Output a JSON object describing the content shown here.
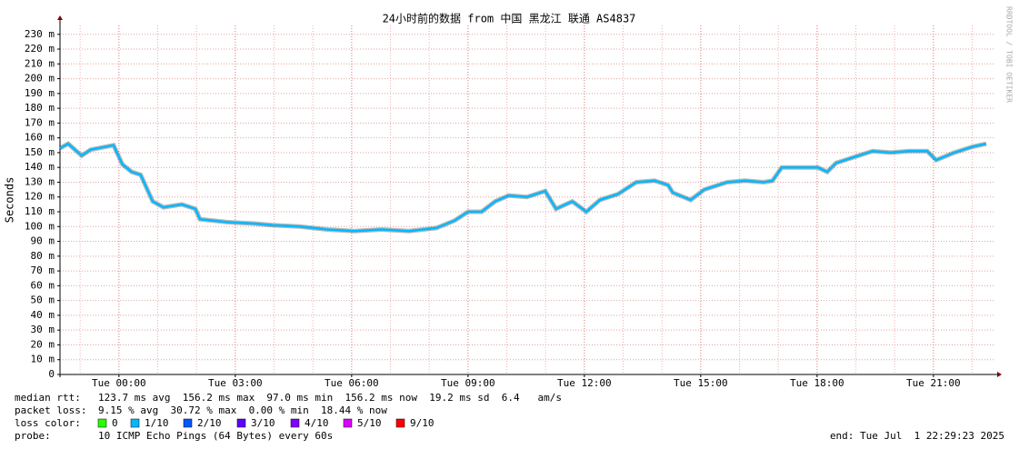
{
  "chart_data": {
    "type": "line",
    "title": "24小时前的数据 from 中国 黑龙江 联通 AS4837",
    "ylabel": "Seconds",
    "watermark": "RRDTOOL / TOBI OETIKER",
    "x": [
      -1.52,
      -1.31,
      -0.96,
      -0.73,
      -0.14,
      0.09,
      0.33,
      0.56,
      0.87,
      1.15,
      1.62,
      1.97,
      2.09,
      2.79,
      3.49,
      3.96,
      4.66,
      5.37,
      6.07,
      6.77,
      7.48,
      8.18,
      8.65,
      9.0,
      9.35,
      9.7,
      10.05,
      10.52,
      10.99,
      11.27,
      11.69,
      12.05,
      12.4,
      12.87,
      13.34,
      13.81,
      14.16,
      14.28,
      14.74,
      15.09,
      15.68,
      16.15,
      16.62,
      16.85,
      17.09,
      17.55,
      18.02,
      18.26,
      18.49,
      18.96,
      19.43,
      19.9,
      20.37,
      20.84,
      21.07,
      21.54,
      22.01,
      22.36
    ],
    "series": [
      {
        "name": "median rtt",
        "color": "#00b8ff",
        "values": [
          153,
          156,
          148,
          152,
          155,
          142,
          137,
          135,
          117,
          113,
          115,
          112,
          105,
          103,
          102,
          101,
          100,
          98,
          97,
          98,
          97,
          99,
          104,
          110,
          110,
          117,
          121,
          120,
          124,
          112,
          117,
          110,
          118,
          122,
          130,
          131,
          128,
          123,
          118,
          125,
          130,
          131,
          130,
          131,
          140,
          140,
          140,
          137,
          143,
          147,
          151,
          150,
          151,
          151,
          145,
          150,
          154,
          156
        ]
      }
    ],
    "xlim": [
      -1.52,
      22.55
    ],
    "xticks": [
      {
        "value": 0,
        "label": "Tue 00:00"
      },
      {
        "value": 3,
        "label": "Tue 03:00"
      },
      {
        "value": 6,
        "label": "Tue 06:00"
      },
      {
        "value": 9,
        "label": "Tue 09:00"
      },
      {
        "value": 12,
        "label": "Tue 12:00"
      },
      {
        "value": 15,
        "label": "Tue 15:00"
      },
      {
        "value": 18,
        "label": "Tue 18:00"
      },
      {
        "value": 21,
        "label": "Tue 21:00"
      }
    ],
    "ylim": [
      0,
      236
    ],
    "yticks": [
      0,
      {
        "value": 10,
        "label": "10 m"
      },
      {
        "value": 20,
        "label": "20 m"
      },
      {
        "value": 30,
        "label": "30 m"
      },
      {
        "value": 40,
        "label": "40 m"
      },
      {
        "value": 50,
        "label": "50 m"
      },
      {
        "value": 60,
        "label": "60 m"
      },
      {
        "value": 70,
        "label": "70 m"
      },
      {
        "value": 80,
        "label": "80 m"
      },
      {
        "value": 90,
        "label": "90 m"
      },
      {
        "value": 100,
        "label": "100 m"
      },
      {
        "value": 110,
        "label": "110 m"
      },
      {
        "value": 120,
        "label": "120 m"
      },
      {
        "value": 130,
        "label": "130 m"
      },
      {
        "value": 140,
        "label": "140 m"
      },
      {
        "value": 150,
        "label": "150 m"
      },
      {
        "value": 160,
        "label": "160 m"
      },
      {
        "value": 170,
        "label": "170 m"
      },
      {
        "value": 180,
        "label": "180 m"
      },
      {
        "value": 190,
        "label": "190 m"
      },
      {
        "value": 200,
        "label": "200 m"
      },
      {
        "value": 210,
        "label": "210 m"
      },
      {
        "value": 220,
        "label": "220 m"
      },
      {
        "value": 230,
        "label": "230 m"
      }
    ],
    "grid": true,
    "footer": {
      "median_rtt": {
        "label": "median rtt:",
        "text": "123.7 ms avg  156.2 ms max  97.0 ms min  156.2 ms now  19.2 ms sd  6.4   am/s"
      },
      "packet_loss": {
        "label": "packet loss:",
        "text": "9.15 % avg  30.72 % max  0.00 % min  18.44 % now"
      },
      "loss_color": {
        "label": "loss color:",
        "items": [
          {
            "name": "0",
            "color": "#26ff00"
          },
          {
            "name": "1/10",
            "color": "#00b8ff"
          },
          {
            "name": "2/10",
            "color": "#0059ff"
          },
          {
            "name": "3/10",
            "color": "#5e00ff"
          },
          {
            "name": "4/10",
            "color": "#7e00ff"
          },
          {
            "name": "5/10",
            "color": "#dd00ff"
          },
          {
            "name": "9/10",
            "color": "#ff0000"
          }
        ]
      },
      "probe": {
        "label": "probe:",
        "text": "10 ICMP Echo Pings (64 Bytes) every 60s"
      },
      "end": "end: Tue Jul  1 22:29:23 2025"
    }
  }
}
